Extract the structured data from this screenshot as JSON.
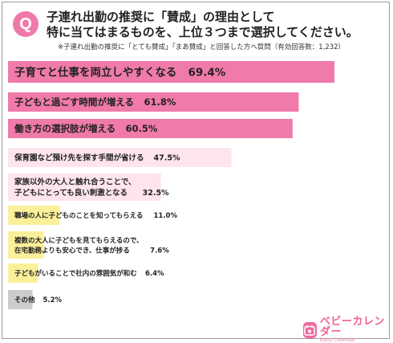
{
  "header": {
    "badge": "Q",
    "title_line1": "子連れ出勤の推奨に「賛成」の理由として",
    "title_line2": "特に当てはまるものを、上位３つまで選択してください。",
    "note": "※子連れ出勤の推奨に「とても賛成」「まあ賛成」と回答した方へ質問（有効回答数：1,232）"
  },
  "chart_data": {
    "type": "bar",
    "orientation": "horizontal",
    "title": "",
    "xlabel": "",
    "ylabel": "",
    "unit": "%",
    "xlim": [
      0,
      75
    ],
    "grid": false,
    "legend": "none",
    "categories": [
      [
        "子育てと仕事を両立しやすくなる"
      ],
      [
        "子どもと過ごす時間が増える"
      ],
      [
        "働き方の選択肢が増える"
      ],
      [
        "保育園など預け先を探す手間が省ける"
      ],
      [
        "家族以外の大人と触れ合うことで、",
        "子どもにとっても良い刺激となる"
      ],
      [
        "職場の人に子どものことを知ってもらえる"
      ],
      [
        "複数の大人に子どもを見てもらえるので、",
        "在宅勤務よりも安心でき、仕事が捗る"
      ],
      [
        "子どもがいることで社内の雰囲気が和む"
      ],
      [
        "その他"
      ]
    ],
    "values": [
      69.4,
      61.8,
      60.5,
      47.5,
      32.5,
      11.0,
      7.6,
      6.4,
      5.2
    ],
    "value_labels": [
      "69.4%",
      "61.8%",
      "60.5%",
      "47.5%",
      "32.5%",
      "11.0%",
      "7.6%",
      "6.4%",
      "5.2%"
    ],
    "colors": [
      "#f07aa9",
      "#f07aa9",
      "#f07aa9",
      "#fde4ee",
      "#fde4ee",
      "#fbf09a",
      "#fbf09a",
      "#fbf09a",
      "#cccccc"
    ]
  },
  "logo": {
    "text_ja": "ベビーカレンダー",
    "text_en": "Baby Calendar",
    "icon": "calendar-icon",
    "color": "#ef6aa0"
  }
}
